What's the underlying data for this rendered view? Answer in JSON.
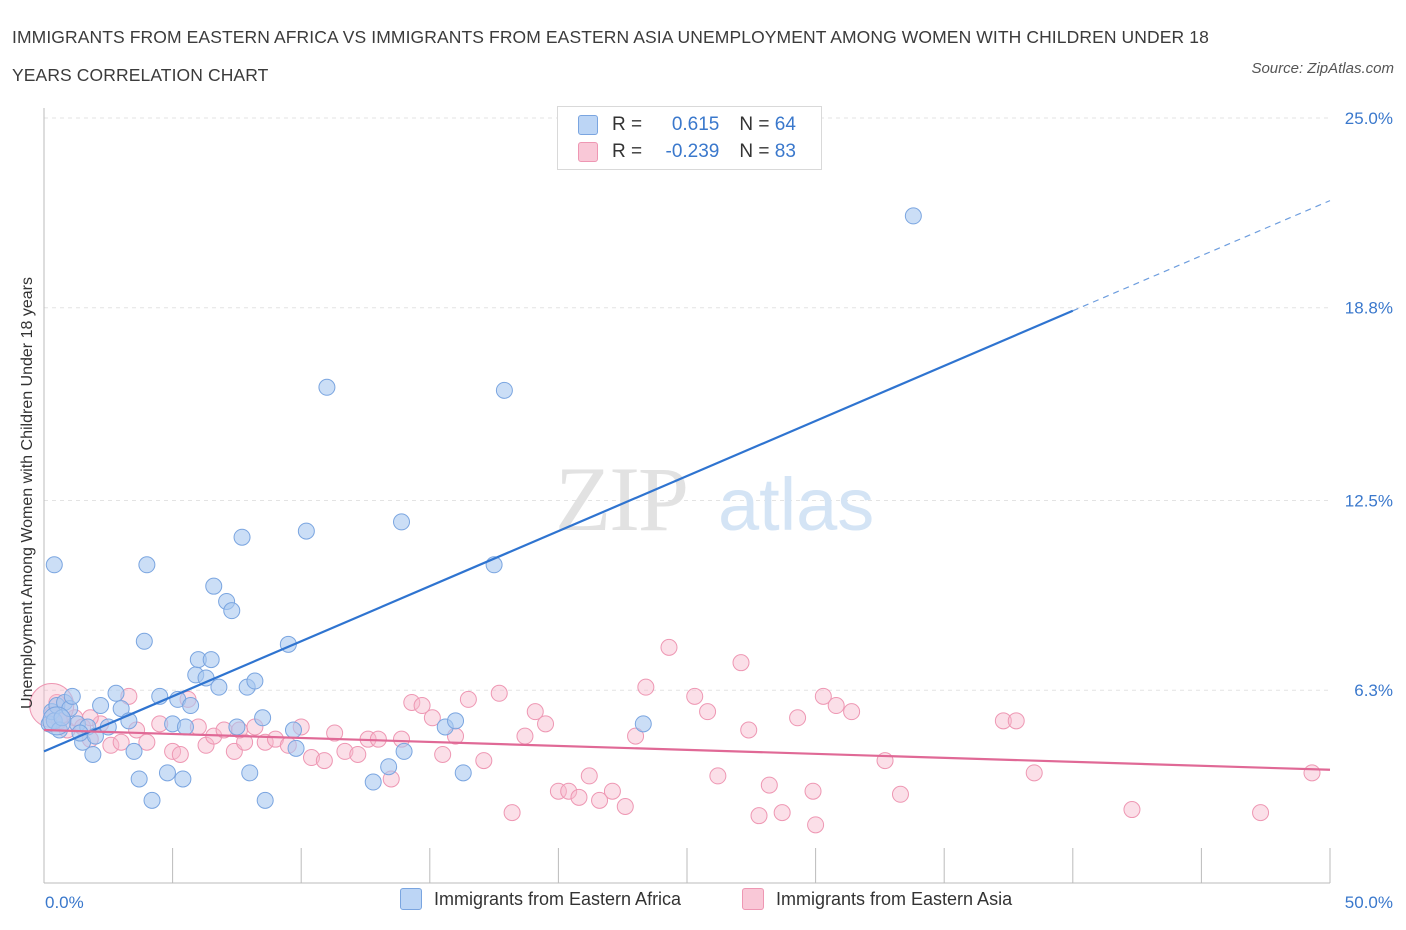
{
  "title": "IMMIGRANTS FROM EASTERN AFRICA VS IMMIGRANTS FROM EASTERN ASIA UNEMPLOYMENT AMONG WOMEN WITH CHILDREN UNDER 18 YEARS CORRELATION CHART",
  "source": "Source: ZipAtlas.com",
  "watermark": {
    "zip": "ZIP",
    "atlas": "atlas"
  },
  "legend": {
    "rows": [
      {
        "r_label": "R = ",
        "r_value": "0.615",
        "n_label": "N = ",
        "n_value": "64"
      },
      {
        "r_label": "R = ",
        "r_value": "-0.239",
        "n_label": "N = ",
        "n_value": "83"
      }
    ]
  },
  "colors": {
    "blue_fill": "#a9c8f0",
    "blue_stroke": "#7aa5e0",
    "blue_line": "#2f74d0",
    "pink_fill": "#f7b8cb",
    "pink_stroke": "#ee97b3",
    "pink_line": "#e06996",
    "axis_text": "#3a78cc",
    "grid": "#e3e3e3"
  },
  "chart_data": {
    "type": "scatter",
    "ylabel": "Unemployment Among Women with Children Under 18 years",
    "xlim": [
      0,
      50
    ],
    "ylim": [
      0,
      25.0
    ],
    "x_ticks": [
      {
        "value": 0,
        "label": "0.0%"
      },
      {
        "value": 50,
        "label": "50.0%"
      }
    ],
    "x_minor_ticks": [
      0,
      5,
      10,
      15,
      20,
      25,
      30,
      35,
      40,
      45,
      50
    ],
    "y_ticks": [
      {
        "value": 6.3,
        "label": "6.3%"
      },
      {
        "value": 12.5,
        "label": "12.5%"
      },
      {
        "value": 18.8,
        "label": "18.8%"
      },
      {
        "value": 25.0,
        "label": "25.0%"
      }
    ],
    "series": [
      {
        "name": "Immigrants from Eastern Africa",
        "color": "blue",
        "trend": {
          "x0": 0,
          "y0": 4.3,
          "x1": 40,
          "y1": 18.7,
          "dash_to_x": 50,
          "dash_to_y": 22.3
        },
        "points": [
          [
            0.2,
            5.2
          ],
          [
            0.3,
            5.6
          ],
          [
            0.4,
            5.3
          ],
          [
            0.5,
            5.8
          ],
          [
            0.6,
            5.0
          ],
          [
            0.7,
            5.4
          ],
          [
            0.8,
            5.9
          ],
          [
            1.0,
            5.7
          ],
          [
            1.1,
            6.1
          ],
          [
            1.3,
            5.2
          ],
          [
            1.5,
            4.6
          ],
          [
            1.7,
            5.1
          ],
          [
            1.9,
            4.2
          ],
          [
            2.0,
            4.8
          ],
          [
            2.2,
            5.8
          ],
          [
            2.5,
            5.1
          ],
          [
            2.8,
            6.2
          ],
          [
            3.0,
            5.7
          ],
          [
            3.3,
            5.3
          ],
          [
            3.5,
            4.3
          ],
          [
            3.7,
            3.4
          ],
          [
            3.9,
            7.9
          ],
          [
            4.2,
            2.7
          ],
          [
            4.5,
            6.1
          ],
          [
            4.8,
            3.6
          ],
          [
            5.0,
            5.2
          ],
          [
            5.2,
            6.0
          ],
          [
            5.4,
            3.4
          ],
          [
            5.5,
            5.1
          ],
          [
            5.7,
            5.8
          ],
          [
            5.9,
            6.8
          ],
          [
            6.0,
            7.3
          ],
          [
            6.3,
            6.7
          ],
          [
            6.5,
            7.3
          ],
          [
            6.6,
            9.7
          ],
          [
            6.8,
            6.4
          ],
          [
            7.1,
            9.2
          ],
          [
            7.3,
            8.9
          ],
          [
            7.5,
            5.1
          ],
          [
            7.7,
            11.3
          ],
          [
            7.9,
            6.4
          ],
          [
            8.0,
            3.6
          ],
          [
            8.2,
            6.6
          ],
          [
            8.5,
            5.4
          ],
          [
            8.6,
            2.7
          ],
          [
            9.5,
            7.8
          ],
          [
            9.7,
            5.0
          ],
          [
            9.8,
            4.4
          ],
          [
            10.2,
            11.5
          ],
          [
            11.0,
            16.2
          ],
          [
            12.8,
            3.3
          ],
          [
            13.4,
            3.8
          ],
          [
            13.9,
            11.8
          ],
          [
            14.0,
            4.3
          ],
          [
            15.6,
            5.1
          ],
          [
            16.0,
            5.3
          ],
          [
            16.3,
            3.6
          ],
          [
            17.5,
            10.4
          ],
          [
            17.9,
            16.1
          ],
          [
            23.3,
            5.2
          ],
          [
            33.8,
            21.8
          ],
          [
            0.4,
            10.4
          ],
          [
            4.0,
            10.4
          ],
          [
            1.4,
            4.9
          ]
        ]
      },
      {
        "name": "Immigrants from Eastern Asia",
        "color": "pink",
        "trend": {
          "x0": 0,
          "y0": 5.0,
          "x1": 50,
          "y1": 3.7
        },
        "points": [
          [
            0.3,
            5.5
          ],
          [
            0.6,
            5.3
          ],
          [
            0.9,
            5.0
          ],
          [
            1.2,
            5.4
          ],
          [
            1.5,
            5.1
          ],
          [
            1.8,
            4.7
          ],
          [
            2.2,
            5.2
          ],
          [
            2.6,
            4.5
          ],
          [
            3.0,
            4.6
          ],
          [
            3.3,
            6.1
          ],
          [
            3.6,
            5.0
          ],
          [
            4.0,
            4.6
          ],
          [
            4.5,
            5.2
          ],
          [
            5.0,
            4.3
          ],
          [
            5.3,
            4.2
          ],
          [
            5.6,
            6.0
          ],
          [
            6.0,
            5.1
          ],
          [
            6.3,
            4.5
          ],
          [
            6.6,
            4.8
          ],
          [
            7.0,
            5.0
          ],
          [
            7.4,
            4.3
          ],
          [
            7.8,
            4.6
          ],
          [
            8.2,
            5.1
          ],
          [
            8.6,
            4.6
          ],
          [
            9.0,
            4.7
          ],
          [
            9.5,
            4.5
          ],
          [
            10.0,
            5.1
          ],
          [
            10.4,
            4.1
          ],
          [
            10.9,
            4.0
          ],
          [
            11.3,
            4.9
          ],
          [
            11.7,
            4.3
          ],
          [
            12.2,
            4.2
          ],
          [
            12.6,
            4.7
          ],
          [
            13.0,
            4.7
          ],
          [
            13.5,
            3.4
          ],
          [
            13.9,
            4.7
          ],
          [
            14.3,
            5.9
          ],
          [
            14.7,
            5.8
          ],
          [
            15.1,
            5.4
          ],
          [
            15.5,
            4.2
          ],
          [
            16.0,
            4.8
          ],
          [
            16.5,
            6.0
          ],
          [
            17.1,
            4.0
          ],
          [
            17.7,
            6.2
          ],
          [
            18.2,
            2.3
          ],
          [
            18.7,
            4.8
          ],
          [
            19.1,
            5.6
          ],
          [
            19.5,
            5.2
          ],
          [
            20.0,
            3.0
          ],
          [
            20.4,
            3.0
          ],
          [
            20.8,
            2.8
          ],
          [
            21.2,
            3.5
          ],
          [
            21.6,
            2.7
          ],
          [
            22.1,
            3.0
          ],
          [
            22.6,
            2.5
          ],
          [
            23.0,
            4.8
          ],
          [
            23.4,
            6.4
          ],
          [
            24.3,
            7.7
          ],
          [
            25.3,
            6.1
          ],
          [
            25.8,
            5.6
          ],
          [
            26.2,
            3.5
          ],
          [
            27.1,
            7.2
          ],
          [
            27.8,
            2.2
          ],
          [
            28.2,
            3.2
          ],
          [
            28.7,
            2.3
          ],
          [
            29.3,
            5.4
          ],
          [
            29.9,
            3.0
          ],
          [
            30.3,
            6.1
          ],
          [
            30.8,
            5.8
          ],
          [
            31.4,
            5.6
          ],
          [
            32.7,
            4.0
          ],
          [
            33.3,
            2.9
          ],
          [
            37.3,
            5.3
          ],
          [
            37.8,
            5.3
          ],
          [
            38.5,
            3.6
          ],
          [
            42.3,
            2.4
          ],
          [
            47.3,
            2.3
          ],
          [
            49.3,
            3.6
          ],
          [
            30.0,
            1.9
          ],
          [
            27.4,
            5.0
          ],
          [
            7.6,
            5.0
          ],
          [
            0.5,
            5.9
          ],
          [
            1.8,
            5.4
          ]
        ]
      }
    ]
  }
}
